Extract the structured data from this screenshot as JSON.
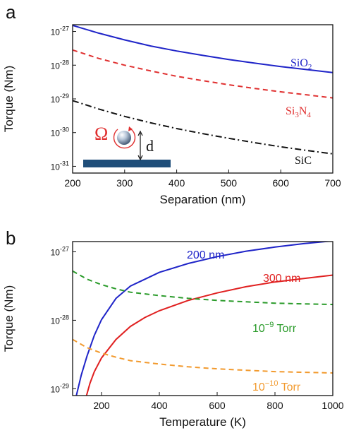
{
  "chart_data": [
    {
      "panel_label": "a",
      "type": "line",
      "xlabel": "Separation (nm)",
      "ylabel": "Torque (Nm)",
      "xlim": [
        200,
        700
      ],
      "ylim_exp": [
        -31.2,
        -26.8
      ],
      "yscale": "log",
      "xticks": [
        200,
        300,
        400,
        500,
        600,
        700
      ],
      "ytick_exps": [
        -27,
        -28,
        -29,
        -30,
        -31
      ],
      "inset_labels": {
        "omega": "Ω",
        "distance": "d"
      },
      "series": [
        {
          "name": "SiO",
          "sub": "2",
          "name_tail": "",
          "color": "#1f24c8",
          "dash": "solid",
          "x": [
            200,
            250,
            300,
            350,
            400,
            450,
            500,
            550,
            600,
            650,
            700
          ],
          "y_exp": [
            -26.82,
            -27.05,
            -27.25,
            -27.43,
            -27.58,
            -27.71,
            -27.83,
            -27.94,
            -28.04,
            -28.13,
            -28.22
          ]
        },
        {
          "name": "Si",
          "sub": "3",
          "name_tail": "N",
          "sub2": "4",
          "color": "#e03030",
          "dash": "dashed",
          "x": [
            200,
            250,
            300,
            350,
            400,
            450,
            500,
            550,
            600,
            650,
            700
          ],
          "y_exp": [
            -27.55,
            -27.8,
            -28.0,
            -28.17,
            -28.33,
            -28.46,
            -28.58,
            -28.69,
            -28.79,
            -28.88,
            -28.97
          ]
        },
        {
          "name": "SiC",
          "sub": "",
          "name_tail": "",
          "color": "#111111",
          "dash": "dashdot",
          "x": [
            200,
            250,
            300,
            350,
            400,
            450,
            500,
            550,
            600,
            650,
            700
          ],
          "y_exp": [
            -29.05,
            -29.3,
            -29.52,
            -29.71,
            -29.88,
            -30.03,
            -30.17,
            -30.3,
            -30.42,
            -30.53,
            -30.63
          ]
        }
      ]
    },
    {
      "panel_label": "b",
      "type": "line",
      "xlabel": "Temperature (K)",
      "ylabel": "Torque (Nm)",
      "xlim": [
        100,
        1000
      ],
      "ylim_exp": [
        -29.1,
        -26.85
      ],
      "yscale": "log",
      "xticks": [
        200,
        400,
        600,
        800,
        1000
      ],
      "ytick_exps": [
        -27,
        -28,
        -29
      ],
      "series": [
        {
          "name": "200 nm",
          "color": "#1f24c8",
          "dash": "solid",
          "x": [
            113,
            130,
            150,
            175,
            200,
            250,
            300,
            350,
            400,
            500,
            600,
            700,
            800,
            900,
            1000
          ],
          "y_exp": [
            -29.1,
            -28.8,
            -28.52,
            -28.22,
            -27.99,
            -27.68,
            -27.5,
            -27.4,
            -27.3,
            -27.17,
            -27.07,
            -26.99,
            -26.93,
            -26.88,
            -26.84
          ]
        },
        {
          "name": "300 nm",
          "color": "#e02020",
          "dash": "solid",
          "x": [
            148,
            160,
            175,
            200,
            250,
            300,
            350,
            400,
            500,
            600,
            700,
            800,
            900,
            1000
          ],
          "y_exp": [
            -29.1,
            -28.92,
            -28.75,
            -28.55,
            -28.28,
            -28.09,
            -27.96,
            -27.86,
            -27.71,
            -27.6,
            -27.51,
            -27.44,
            -27.39,
            -27.34
          ]
        },
        {
          "name": "10",
          "sup": "−9",
          "name_tail": " Torr",
          "color": "#2a9b2a",
          "dash": "dashed",
          "x": [
            100,
            150,
            200,
            250,
            300,
            400,
            500,
            600,
            700,
            800,
            900,
            1000
          ],
          "y_exp": [
            -27.28,
            -27.4,
            -27.48,
            -27.54,
            -27.59,
            -27.64,
            -27.68,
            -27.71,
            -27.73,
            -27.75,
            -27.76,
            -27.77
          ]
        },
        {
          "name": "10",
          "sup": "−10",
          "name_tail": " Torr",
          "color": "#f29a2e",
          "dash": "dashed",
          "x": [
            100,
            150,
            200,
            250,
            300,
            400,
            500,
            600,
            700,
            800,
            900,
            1000
          ],
          "y_exp": [
            -28.28,
            -28.4,
            -28.48,
            -28.54,
            -28.59,
            -28.64,
            -28.68,
            -28.71,
            -28.73,
            -28.75,
            -28.76,
            -28.77
          ]
        }
      ]
    }
  ]
}
